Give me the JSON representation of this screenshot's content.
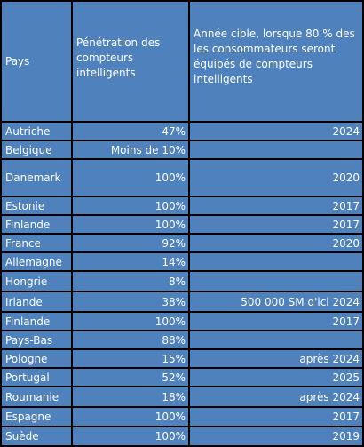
{
  "table": {
    "headers": {
      "country": "Pays",
      "penetration_lines": [
        "Pénétration des",
        "compteurs",
        "intelligents"
      ],
      "target_lines": [
        "Année cible, lorsque 80 % des",
        "les consommateurs seront",
        "équipés de compteurs",
        "intelligents"
      ]
    },
    "rows": [
      {
        "country": "Autriche",
        "penetration": "47%",
        "target": "2024"
      },
      {
        "country": "Belgique",
        "penetration": "Moins de 10%",
        "target": ""
      },
      {
        "country": "Danemark",
        "penetration": "100%",
        "target": "2020"
      },
      {
        "country": "Estonie",
        "penetration": "100%",
        "target": "2017"
      },
      {
        "country": "Finlande",
        "penetration": "100%",
        "target": "2017"
      },
      {
        "country": "France",
        "penetration": "92%",
        "target": "2020"
      },
      {
        "country": "Allemagne",
        "penetration": "14%",
        "target": ""
      },
      {
        "country": "Hongrie",
        "penetration": "8%",
        "target": ""
      },
      {
        "country": "Irlande",
        "penetration": "38%",
        "target": "500 000 SM d'ici 2024"
      },
      {
        "country": "Finlande",
        "penetration": "100%",
        "target": "2017"
      },
      {
        "country": "Pays-Bas",
        "penetration": "88%",
        "target": ""
      },
      {
        "country": "Pologne",
        "penetration": "15%",
        "target": "après 2024"
      },
      {
        "country": "Portugal",
        "penetration": "52%",
        "target": "2025"
      },
      {
        "country": "Roumanie",
        "penetration": "18%",
        "target": "après 2024"
      },
      {
        "country": "Espagne",
        "penetration": "100%",
        "target": "2017"
      },
      {
        "country": "Suède",
        "penetration": "100%",
        "target": "2019"
      }
    ]
  },
  "colors": {
    "cell_background": "#4f81bd",
    "grid_lines": "#000000",
    "text": "#ffffff"
  }
}
